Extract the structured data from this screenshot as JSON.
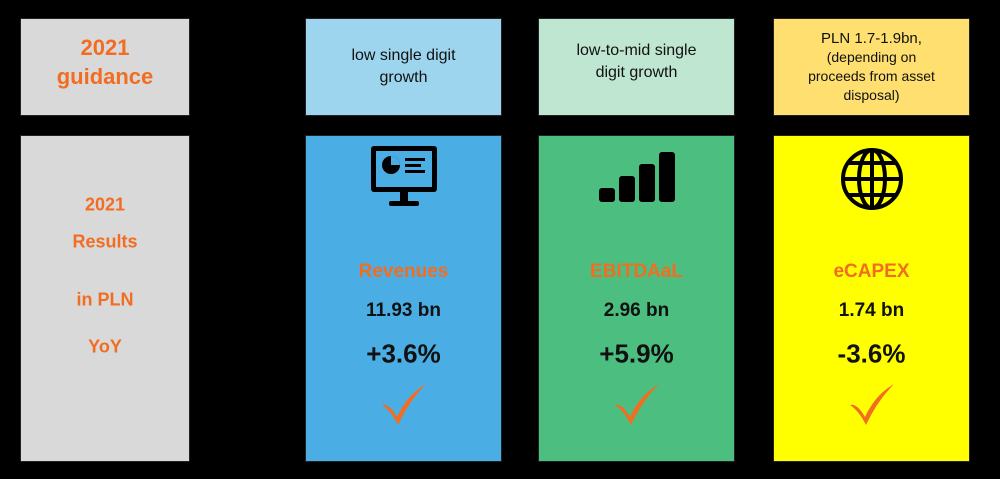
{
  "guidance_label": [
    "2021",
    "guidance"
  ],
  "results_label": [
    "2021",
    "Results",
    "in PLN",
    "YoY"
  ],
  "columns": [
    {
      "guidance": [
        "low single digit",
        "growth"
      ],
      "metric": "Revenues",
      "value": "11.93 bn",
      "change": "+3.6%"
    },
    {
      "guidance": [
        "low-to-mid single",
        "digit growth"
      ],
      "metric": "EBITDAaL",
      "value": "2.96 bn",
      "change": "+5.9%"
    },
    {
      "guidance": [
        "PLN 1.7-1.9bn,",
        "(depending on",
        "proceeds from asset",
        "disposal)"
      ],
      "metric": "eCAPEX",
      "value": "1.74 bn",
      "change": "-3.6%"
    }
  ]
}
